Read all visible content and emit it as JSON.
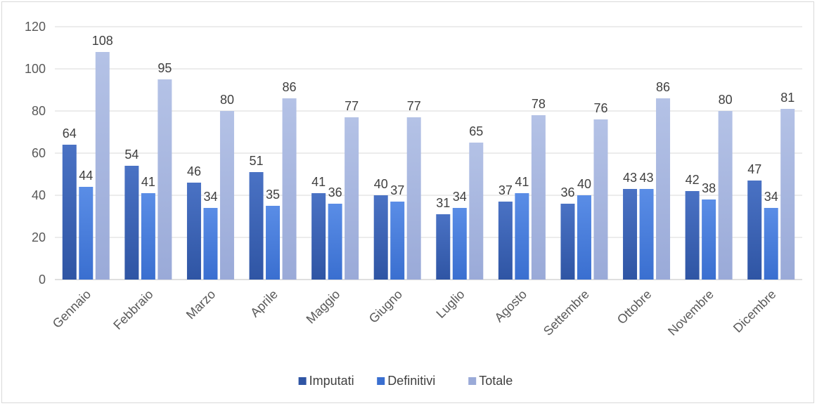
{
  "chart_data": {
    "type": "bar",
    "title": "",
    "xlabel": "",
    "ylabel": "",
    "ylim": [
      0,
      120
    ],
    "yticks": [
      0,
      20,
      40,
      60,
      80,
      100,
      120
    ],
    "grid": true,
    "legend_position": "bottom",
    "categories": [
      "Gennaio",
      "Febbraio",
      "Marzo",
      "Aprile",
      "Maggio",
      "Giugno",
      "Luglio",
      "Agosto",
      "Settembre",
      "Ottobre",
      "Novembre",
      "Dicembre"
    ],
    "series": [
      {
        "name": "Imputati",
        "color": "#2f55a4",
        "color_light": "#4a72c4",
        "values": [
          64,
          54,
          46,
          51,
          41,
          40,
          31,
          37,
          36,
          43,
          42,
          47
        ]
      },
      {
        "name": "Definitivi",
        "color": "#3a6fd0",
        "color_light": "#5a8de6",
        "values": [
          44,
          41,
          34,
          35,
          36,
          37,
          34,
          41,
          40,
          43,
          38,
          34
        ]
      },
      {
        "name": "Totale",
        "color": "#9aaad8",
        "color_light": "#b4c2e6",
        "values": [
          108,
          95,
          80,
          86,
          77,
          77,
          65,
          78,
          76,
          86,
          80,
          81
        ]
      }
    ]
  }
}
